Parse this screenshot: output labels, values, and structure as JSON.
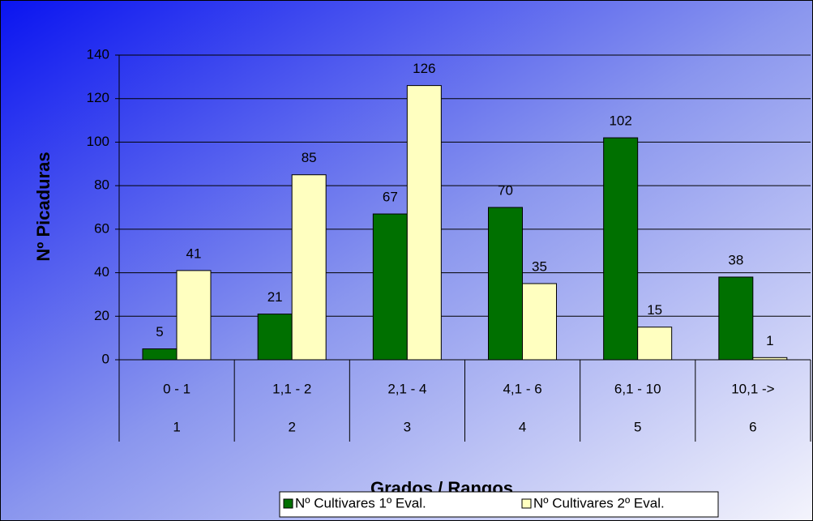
{
  "chart_data": {
    "type": "bar",
    "y_label": "Nº Picaduras",
    "x_label": "Grados / Rangos",
    "categories": [
      "0 - 1",
      "1,1 - 2",
      "2,1 - 4",
      "4,1 - 6",
      "6,1 - 10",
      "10,1 ->"
    ],
    "category_numbers": [
      1,
      2,
      3,
      4,
      5,
      6
    ],
    "series": [
      {
        "name": "Nº Cultivares 1º Eval.",
        "color": "#007000",
        "values": [
          5,
          21,
          67,
          70,
          102,
          38
        ]
      },
      {
        "name": "Nº Cultivares 2º Eval.",
        "color": "#ffffc0",
        "values": [
          41,
          85,
          126,
          35,
          15,
          1
        ]
      }
    ],
    "ylim": [
      0,
      140
    ],
    "yticks": [
      0,
      20,
      40,
      60,
      80,
      100,
      120,
      140
    ],
    "grid": true,
    "legend": "bottom"
  }
}
